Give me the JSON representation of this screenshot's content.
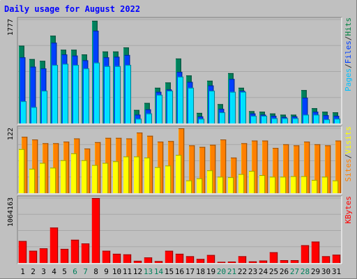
{
  "chart_data": {
    "type": "bar",
    "title": "Daily usage for August 2022",
    "days": [
      "1",
      "2",
      "3",
      "4",
      "5",
      "6",
      "7",
      "8",
      "9",
      "10",
      "11",
      "12",
      "13",
      "14",
      "15",
      "16",
      "17",
      "18",
      "19",
      "20",
      "21",
      "22",
      "23",
      "24",
      "25",
      "26",
      "27",
      "28",
      "29",
      "30",
      "31"
    ],
    "weekend_days": [
      "6",
      "7",
      "13",
      "14",
      "20",
      "21",
      "27",
      "28"
    ],
    "panels": [
      {
        "id": "top",
        "max_label": "1777",
        "ymax": 1777,
        "legend": [
          "Pages",
          "/",
          "Files",
          "/",
          "Hits"
        ],
        "legend_colors": [
          "#00c0ff",
          "#303030",
          "#0040ff",
          "#303030",
          "#008040"
        ],
        "series": [
          {
            "name": "Hits",
            "color": "#00805c",
            "values": [
              1330,
              1100,
              1070,
              1500,
              1260,
              1260,
              1180,
              1755,
              1230,
              1230,
              1300,
              230,
              350,
              610,
              700,
              1110,
              820,
              180,
              730,
              330,
              860,
              610,
              210,
              200,
              170,
              150,
              150,
              570,
              260,
              200,
              190
            ]
          },
          {
            "name": "Files",
            "color": "#0040ff",
            "values": [
              1130,
              970,
              940,
              1380,
              1180,
              1160,
              1080,
              1585,
              1130,
              1140,
              1170,
              150,
              240,
              540,
              580,
              880,
              710,
              120,
              650,
              250,
              760,
              560,
              170,
              150,
              130,
              110,
              120,
              440,
              200,
              140,
              130
            ]
          },
          {
            "name": "Pages",
            "color": "#00e0ff",
            "values": [
              380,
              280,
              560,
              1000,
              1020,
              1000,
              940,
              1040,
              980,
              980,
              1000,
              80,
              170,
              490,
              560,
              800,
              610,
              80,
              560,
              190,
              540,
              540,
              130,
              130,
              90,
              90,
              90,
              150,
              150,
              70,
              80
            ]
          }
        ]
      },
      {
        "id": "middle",
        "max_label": "122",
        "ymax": 122,
        "legend": [
          "Sites",
          "/",
          "Visits"
        ],
        "legend_colors": [
          "#ff8000",
          "#303030",
          "#ffff00"
        ],
        "series": [
          {
            "name": "Visits",
            "color": "#ff8000",
            "values": [
              106,
              101,
              94,
              94,
              97,
              103,
              84,
              96,
              104,
              104,
              103,
              114,
              108,
              97,
              98,
              122,
              90,
              87,
              91,
              101,
              67,
              94,
              99,
              99,
              85,
              92,
              90,
              97,
              92,
              90,
              99
            ]
          },
          {
            "name": "Sites",
            "color": "#ffff00",
            "values": [
              83,
              46,
              57,
              48,
              62,
              75,
              62,
              53,
              57,
              60,
              69,
              69,
              67,
              49,
              52,
              72,
              24,
              28,
              43,
              31,
              30,
              36,
              42,
              34,
              31,
              31,
              32,
              32,
              25,
              31,
              24
            ]
          }
        ]
      },
      {
        "id": "bottom",
        "max_label": "1064163",
        "ymax": 1064163,
        "legend": [
          "KBytes"
        ],
        "legend_colors": [
          "#ff0000"
        ],
        "series": [
          {
            "name": "KBytes",
            "color": "#ff0000",
            "values": [
              360000,
              200000,
              240000,
              580000,
              230000,
              380000,
              320000,
              1064163,
              200000,
              150000,
              140000,
              35000,
              90000,
              30000,
              200000,
              150000,
              110000,
              65000,
              130000,
              18000,
              22000,
              110000,
              25000,
              40000,
              175000,
              45000,
              45000,
              290000,
              350000,
              110000,
              135000
            ]
          }
        ]
      }
    ],
    "grid": true
  }
}
